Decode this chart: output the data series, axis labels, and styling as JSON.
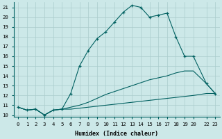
{
  "xlabel": "Humidex (Indice chaleur)",
  "bg_color": "#cce8e8",
  "grid_color": "#aacccc",
  "line_color": "#006060",
  "lines": [
    {
      "x": [
        0,
        1,
        2,
        3,
        4,
        5,
        6,
        7,
        8,
        9,
        10,
        11,
        12,
        13,
        14,
        15,
        16,
        17,
        18,
        19,
        20,
        22,
        23
      ],
      "y": [
        10.8,
        10.5,
        10.6,
        10.0,
        10.5,
        10.6,
        12.2,
        15.0,
        16.6,
        17.8,
        18.5,
        19.5,
        20.5,
        21.2,
        21.0,
        20.0,
        20.2,
        20.4,
        18.0,
        16.0,
        16.0,
        13.2,
        12.2
      ],
      "marker": true
    },
    {
      "x": [
        0,
        1,
        2,
        3,
        4,
        5,
        6,
        7,
        8,
        9,
        10,
        11,
        12,
        13,
        14,
        15,
        16,
        17,
        18,
        19,
        20,
        22,
        23
      ],
      "y": [
        10.8,
        10.5,
        10.6,
        10.0,
        10.5,
        10.6,
        10.8,
        11.0,
        11.3,
        11.7,
        12.1,
        12.4,
        12.7,
        13.0,
        13.3,
        13.6,
        13.8,
        14.0,
        14.3,
        14.5,
        14.5,
        13.2,
        12.2
      ],
      "marker": false
    },
    {
      "x": [
        0,
        1,
        2,
        3,
        4,
        5,
        6,
        7,
        8,
        9,
        10,
        11,
        12,
        13,
        14,
        15,
        16,
        17,
        18,
        19,
        20,
        22,
        23
      ],
      "y": [
        10.8,
        10.5,
        10.6,
        10.0,
        10.5,
        10.6,
        10.6,
        10.7,
        10.8,
        10.9,
        11.0,
        11.1,
        11.2,
        11.3,
        11.4,
        11.5,
        11.6,
        11.7,
        11.8,
        11.9,
        12.0,
        12.2,
        12.2
      ],
      "marker": false
    }
  ],
  "xlim_data": [
    0,
    23
  ],
  "ylim": [
    9.8,
    21.5
  ],
  "xtick_positions": [
    0,
    1,
    2,
    3,
    4,
    5,
    6,
    7,
    8,
    9,
    10,
    11,
    12,
    13,
    14,
    15,
    16,
    17,
    18,
    19,
    20,
    22,
    23
  ],
  "xticklabels": [
    "0",
    "1",
    "2",
    "3",
    "4",
    "5",
    "6",
    "7",
    "8",
    "9",
    "10",
    "11",
    "12",
    "13",
    "14",
    "15",
    "16",
    "17",
    "18",
    "19",
    "20",
    "22",
    "23"
  ],
  "yticks": [
    10,
    11,
    12,
    13,
    14,
    15,
    16,
    17,
    18,
    19,
    20,
    21
  ],
  "tick_fontsize": 5.2,
  "label_fontsize": 6.0
}
